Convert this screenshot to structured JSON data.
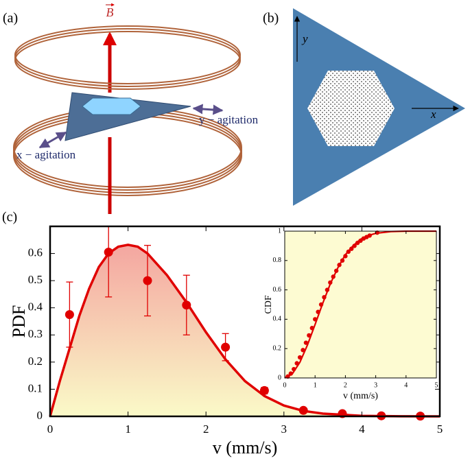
{
  "panel_a": {
    "label": "(a)",
    "field_label": "B",
    "y_agitation_label": "y − agitation",
    "x_agitation_label": "x − agitation"
  },
  "panel_b": {
    "label": "(b)",
    "x_axis_label": "x",
    "y_axis_label": "y"
  },
  "panel_c": {
    "label": "(c)"
  },
  "chart_data": [
    {
      "type": "scatter",
      "ylabel": "PDF",
      "xlabel": "v (mm/s)",
      "xlim": [
        0,
        5
      ],
      "ylim": [
        0,
        0.7
      ],
      "xticks": [
        0,
        1,
        2,
        3,
        4,
        5
      ],
      "yticks": [
        0,
        0.1,
        0.2,
        0.3,
        0.4,
        0.5,
        0.6
      ],
      "series": [
        {
          "mode": "markers",
          "color": "#e00000",
          "x": [
            0.25,
            0.75,
            1.25,
            1.75,
            2.25,
            2.75,
            3.25,
            3.75,
            4.25,
            4.75
          ],
          "values": [
            0.375,
            0.605,
            0.5,
            0.41,
            0.255,
            0.095,
            0.022,
            0.01,
            0.002,
            0.001
          ],
          "errors": [
            0.12,
            0.165,
            0.13,
            0.11,
            0.05,
            0.012,
            null,
            null,
            null,
            null
          ]
        },
        {
          "mode": "line",
          "color": "#e00000",
          "area": true,
          "x": [
            0,
            0.125,
            0.25,
            0.375,
            0.5,
            0.625,
            0.75,
            0.875,
            1,
            1.125,
            1.25,
            1.5,
            1.75,
            2,
            2.25,
            2.5,
            2.75,
            3,
            3.25,
            3.5,
            4,
            4.5,
            5
          ],
          "values": [
            0,
            0.13,
            0.25,
            0.37,
            0.47,
            0.55,
            0.6,
            0.625,
            0.632,
            0.625,
            0.6,
            0.52,
            0.42,
            0.31,
            0.21,
            0.13,
            0.075,
            0.04,
            0.02,
            0.01,
            0.002,
            0.0003,
            0
          ]
        }
      ]
    },
    {
      "type": "scatter",
      "ylabel": "CDF",
      "xlabel": "v (mm/s)",
      "xlim": [
        0,
        5
      ],
      "ylim": [
        0,
        1
      ],
      "xticks": [
        0,
        1,
        2,
        3,
        4,
        5
      ],
      "yticks": [
        0,
        0.2,
        0.4,
        0.6,
        0.8,
        1
      ],
      "series": [
        {
          "mode": "markers",
          "color": "#e00000",
          "x": [
            0.1,
            0.2,
            0.3,
            0.4,
            0.5,
            0.6,
            0.7,
            0.8,
            0.9,
            1.0,
            1.1,
            1.2,
            1.3,
            1.4,
            1.5,
            1.6,
            1.7,
            1.8,
            1.9,
            2.0,
            2.1,
            2.2,
            2.3,
            2.4,
            2.5,
            2.6,
            2.7,
            2.8,
            3.05
          ],
          "values": [
            0.01,
            0.03,
            0.06,
            0.1,
            0.14,
            0.19,
            0.24,
            0.29,
            0.34,
            0.4,
            0.45,
            0.5,
            0.55,
            0.6,
            0.65,
            0.69,
            0.73,
            0.77,
            0.8,
            0.83,
            0.86,
            0.88,
            0.9,
            0.92,
            0.935,
            0.95,
            0.96,
            0.97,
            0.99
          ]
        },
        {
          "mode": "line",
          "color": "#e00000",
          "x": [
            0,
            0.25,
            0.5,
            0.75,
            1,
            1.25,
            1.5,
            1.75,
            2,
            2.25,
            2.5,
            2.75,
            3,
            3.5,
            4,
            5
          ],
          "values": [
            0,
            0.028,
            0.107,
            0.225,
            0.364,
            0.507,
            0.64,
            0.75,
            0.84,
            0.9,
            0.945,
            0.97,
            0.985,
            0.997,
            1,
            1
          ]
        }
      ]
    }
  ]
}
